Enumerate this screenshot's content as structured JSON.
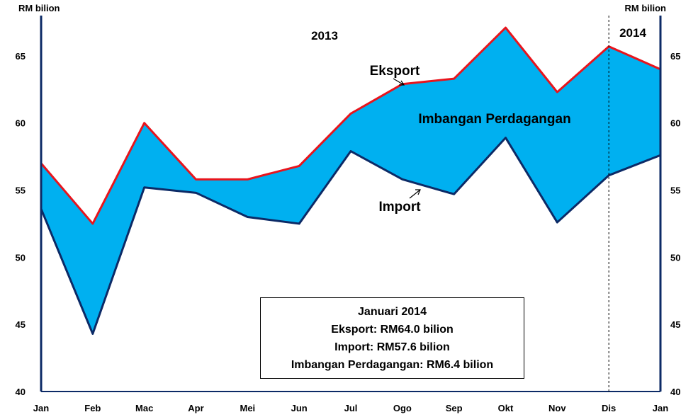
{
  "chart_data": {
    "type": "area",
    "categories": [
      "Jan",
      "Feb",
      "Mac",
      "Apr",
      "Mei",
      "Jun",
      "Jul",
      "Ogo",
      "Sep",
      "Okt",
      "Nov",
      "Dis",
      "Jan"
    ],
    "series": [
      {
        "name": "Eksport",
        "color": "#e8141c",
        "values": [
          57.0,
          52.5,
          60.0,
          55.8,
          55.8,
          56.8,
          60.7,
          62.9,
          63.3,
          67.1,
          62.3,
          65.7,
          64.0
        ]
      },
      {
        "name": "Import",
        "color": "#0c2a66",
        "values": [
          53.6,
          44.3,
          55.2,
          54.8,
          53.0,
          52.5,
          57.9,
          55.8,
          54.7,
          58.9,
          52.6,
          56.1,
          57.6
        ]
      }
    ],
    "fill_label": "Imbangan Perdagangan",
    "fill_color": "#00b0f0",
    "ylabel_left": "RM bilion",
    "ylabel_right": "RM bilion",
    "ylim": [
      40,
      68
    ],
    "yticks": [
      40,
      45,
      50,
      55,
      60,
      65
    ],
    "year_labels": [
      "2013",
      "2014"
    ],
    "divider_after_category": "Dis",
    "legend": "none",
    "grid": false
  },
  "info_box": {
    "line1": "Januari 2014",
    "line2": "Eksport: RM64.0 bilion",
    "line3": "Import: RM57.6 bilion",
    "line4": "Imbangan Perdagangan: RM6.4 bilion"
  }
}
